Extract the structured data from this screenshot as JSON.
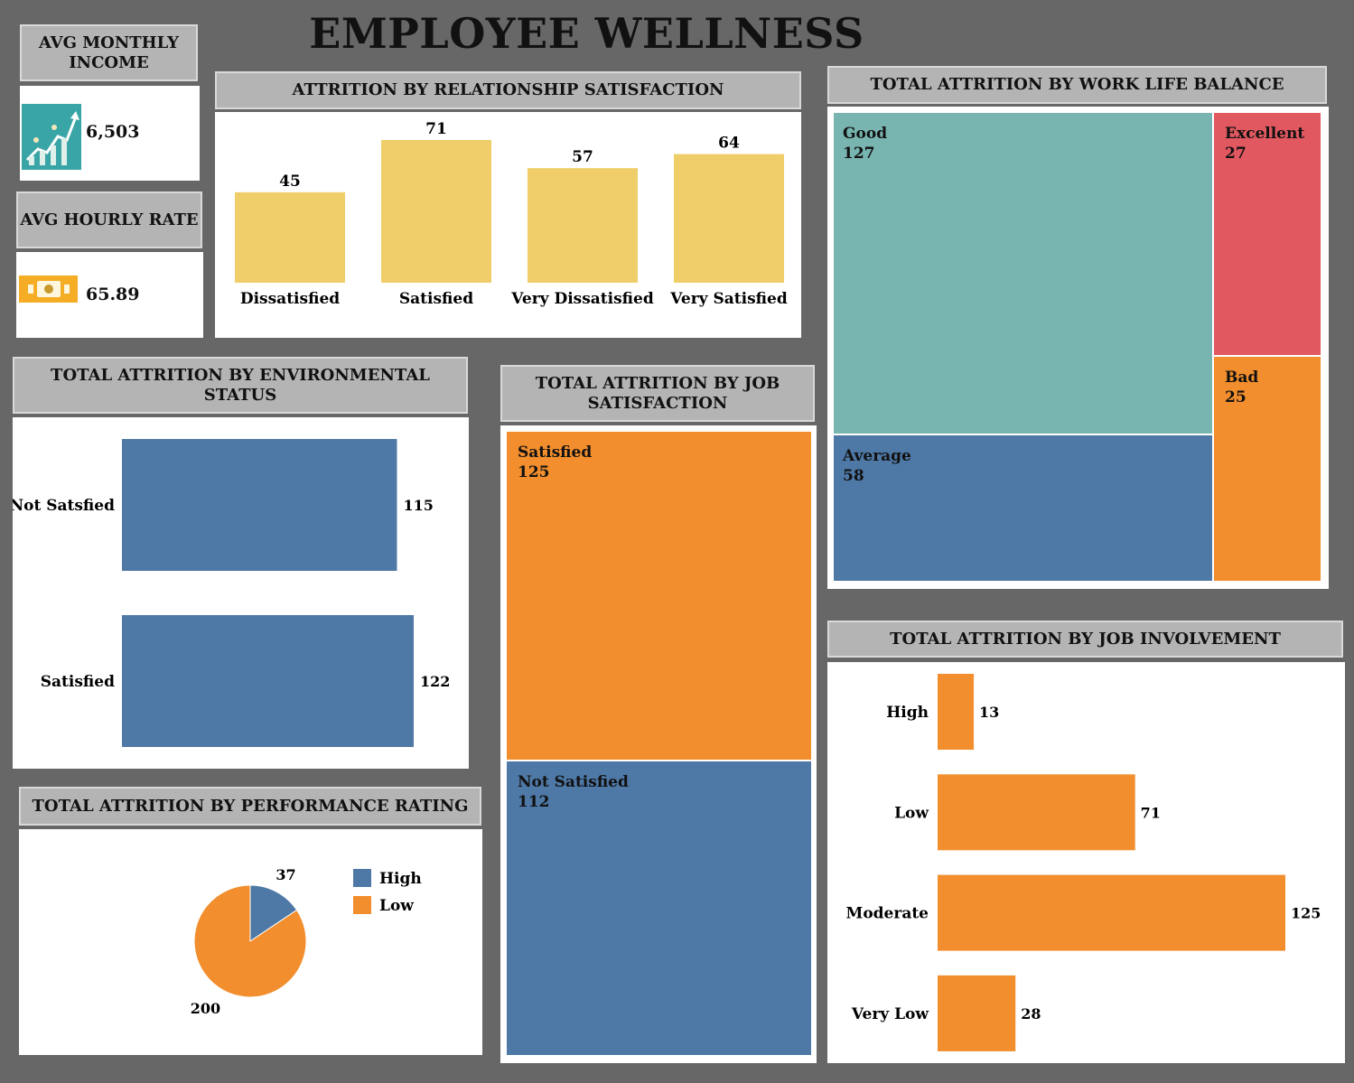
{
  "title": "EMPLOYEE WELLNESS",
  "kpis": {
    "income": {
      "label": "AVG MONTHLY INCOME",
      "value": "6,503",
      "icon": "growth-chart-icon"
    },
    "hourly": {
      "label": "AVG HOURLY RATE",
      "value": "65.89",
      "icon": "money-icon"
    }
  },
  "colors": {
    "yellow": "#efce6a",
    "blue": "#4e78a6",
    "orange": "#f28e2d",
    "teal": "#78b5b0",
    "red": "#e15860"
  },
  "chart_data": [
    {
      "id": "relationship",
      "type": "bar",
      "title": "ATTRITION BY RELATIONSHIP SATISFACTION",
      "categories": [
        "Dissatisfied",
        "Satisfied",
        "Very Dissatisfied",
        "Very Satisfied"
      ],
      "values": [
        45,
        71,
        57,
        64
      ],
      "ylim": [
        0,
        71
      ]
    },
    {
      "id": "work_life",
      "type": "treemap",
      "title": "TOTAL ATTRITION BY WORK LIFE BALANCE",
      "categories": [
        "Good",
        "Excellent",
        "Bad",
        "Average"
      ],
      "values": [
        127,
        27,
        25,
        58
      ]
    },
    {
      "id": "environment",
      "type": "bar",
      "orientation": "horizontal",
      "title": "TOTAL ATTRITION BY ENVIRONMENTAL STATUS",
      "categories": [
        "Not Satsfied",
        "Satisfied"
      ],
      "values": [
        115,
        122
      ]
    },
    {
      "id": "job_satisfaction",
      "type": "treemap",
      "title": "TOTAL ATTRITION BY JOB SATISFACTION",
      "categories": [
        "Satisfied",
        "Not Satisfied"
      ],
      "values": [
        125,
        112
      ]
    },
    {
      "id": "job_involvement",
      "type": "bar",
      "orientation": "horizontal",
      "title": "TOTAL ATTRITION BY JOB INVOLVEMENT",
      "categories": [
        "High",
        "Low",
        "Moderate",
        "Very Low"
      ],
      "values": [
        13,
        71,
        125,
        28
      ]
    },
    {
      "id": "performance",
      "type": "pie",
      "title": "TOTAL ATTRITION BY PERFORMANCE RATING",
      "categories": [
        "High",
        "Low"
      ],
      "values": [
        37,
        200
      ],
      "legend": "right"
    }
  ]
}
